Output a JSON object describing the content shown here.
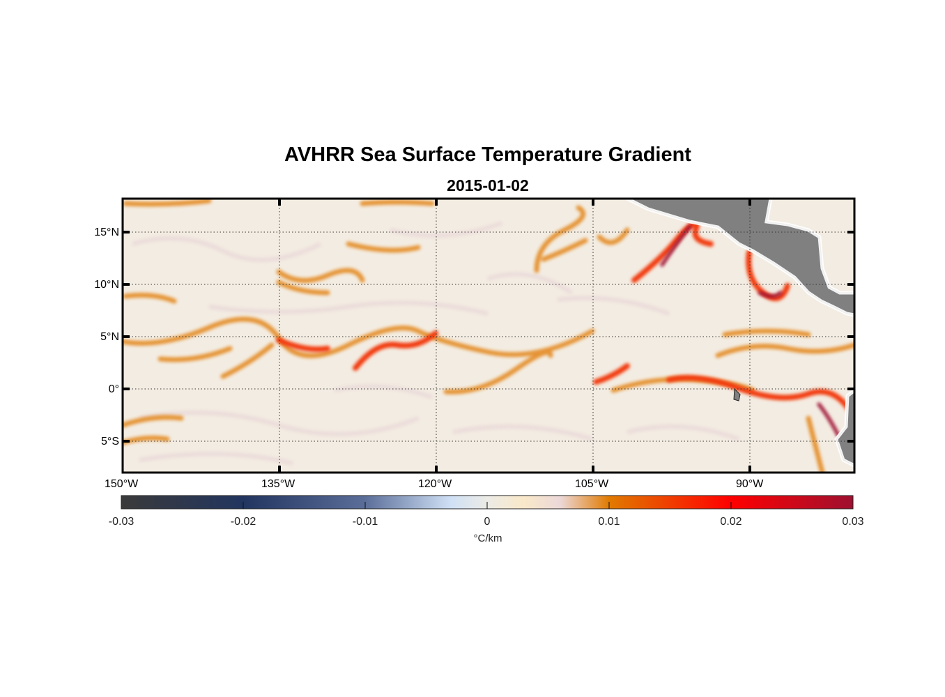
{
  "title": "AVHRR Sea Surface Temperature Gradient",
  "subtitle": "2015-01-02",
  "map": {
    "lon_range": [
      -150,
      -80
    ],
    "lat_range": [
      -8,
      18
    ],
    "lon_ticks": [
      "150°W",
      "135°W",
      "120°W",
      "105°W",
      "90°W"
    ],
    "lat_ticks": [
      "15°N",
      "10°N",
      "5°N",
      "0°",
      "5°S"
    ],
    "land_color": "#808080",
    "ocean_base_color": "#f3ece2"
  },
  "colorbar": {
    "min": -0.03,
    "max": 0.03,
    "tick_labels": [
      "-0.03",
      "-0.02",
      "-0.01",
      "0",
      "0.01",
      "0.02",
      "0.03"
    ],
    "unit": "°C/km",
    "colors": [
      "#3a3a3a",
      "#213560",
      "#5c6f9a",
      "#cfe0f5",
      "#ece9e4",
      "#f9e8c9",
      "#e07a00",
      "#ff0000",
      "#9e1030"
    ]
  }
}
